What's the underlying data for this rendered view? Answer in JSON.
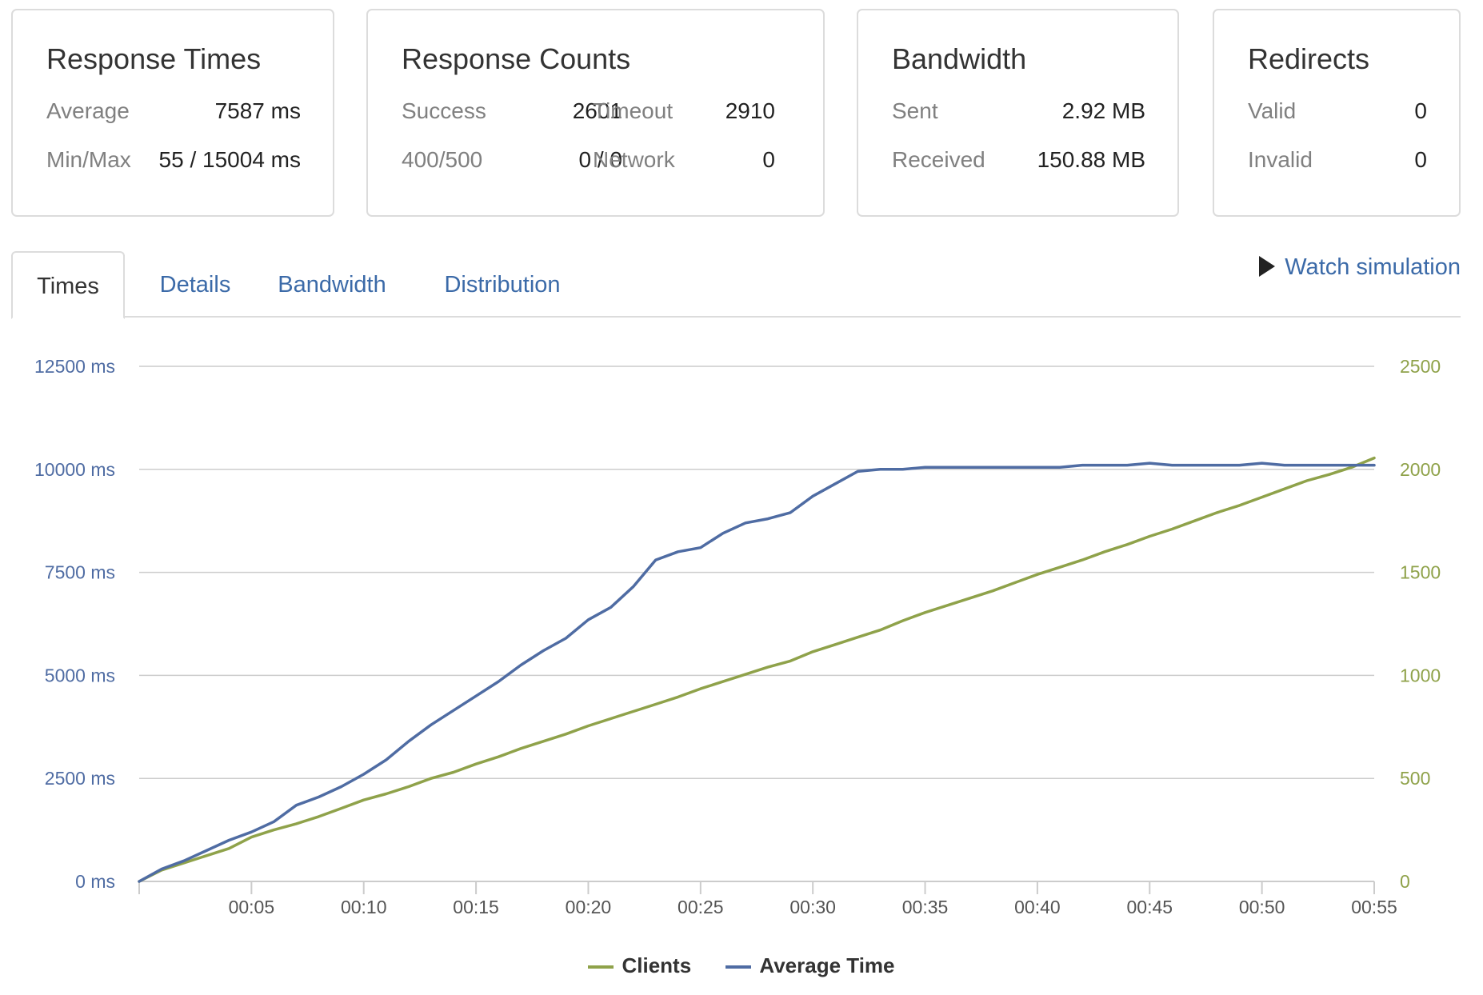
{
  "cards": {
    "response_times": {
      "title": "Response Times",
      "avg_label": "Average",
      "avg_value": "7587 ms",
      "minmax_label": "Min/Max",
      "minmax_value": "55 / 15004 ms"
    },
    "response_counts": {
      "title": "Response Counts",
      "success_label": "Success",
      "success_value": "2601",
      "timeout_label": "Timeout",
      "timeout_value": "2910",
      "err_label": "400/500",
      "err_value": "0 / 0",
      "network_label": "Network",
      "network_value": "0"
    },
    "bandwidth": {
      "title": "Bandwidth",
      "sent_label": "Sent",
      "sent_value": "2.92 MB",
      "received_label": "Received",
      "received_value": "150.88 MB"
    },
    "redirects": {
      "title": "Redirects",
      "valid_label": "Valid",
      "valid_value": "0",
      "invalid_label": "Invalid",
      "invalid_value": "0"
    }
  },
  "tabs": [
    {
      "label": "Times",
      "active": true
    },
    {
      "label": "Details",
      "active": false
    },
    {
      "label": "Bandwidth",
      "active": false
    },
    {
      "label": "Distribution",
      "active": false
    }
  ],
  "watch_label": "Watch simulation",
  "colors": {
    "clients": "#8fa24a",
    "avg_time": "#4f6ca3",
    "link": "#3b6aa8",
    "grid": "#cccccc"
  },
  "chart_data": {
    "type": "line",
    "x_ticks": [
      "00:05",
      "00:10",
      "00:15",
      "00:20",
      "00:25",
      "00:30",
      "00:35",
      "00:40",
      "00:45",
      "00:50",
      "00:55"
    ],
    "x_range": [
      0,
      55
    ],
    "y_left": {
      "ticks": [
        "0 ms",
        "2500 ms",
        "5000 ms",
        "7500 ms",
        "10000 ms",
        "12500 ms"
      ],
      "range": [
        0,
        12500
      ],
      "step": 2500
    },
    "y_right": {
      "ticks": [
        "0",
        "500",
        "1000",
        "1500",
        "2000",
        "2500"
      ],
      "range": [
        0,
        2500
      ],
      "step": 500
    },
    "series": [
      {
        "name": "Clients",
        "axis": "right",
        "x": [
          0,
          1,
          2,
          3,
          4,
          5,
          6,
          7,
          8,
          9,
          10,
          11,
          12,
          13,
          14,
          15,
          16,
          17,
          18,
          19,
          20,
          21,
          22,
          23,
          24,
          25,
          26,
          27,
          28,
          29,
          30,
          31,
          32,
          33,
          34,
          35,
          36,
          37,
          38,
          39,
          40,
          41,
          42,
          43,
          44,
          45,
          46,
          47,
          48,
          49,
          50,
          51,
          52,
          53,
          54,
          55
        ],
        "values": [
          0,
          55,
          90,
          125,
          160,
          215,
          250,
          280,
          315,
          355,
          395,
          425,
          460,
          500,
          530,
          570,
          605,
          645,
          680,
          715,
          755,
          790,
          825,
          860,
          895,
          935,
          970,
          1005,
          1040,
          1070,
          1115,
          1150,
          1185,
          1220,
          1265,
          1305,
          1340,
          1375,
          1410,
          1450,
          1490,
          1525,
          1560,
          1600,
          1635,
          1675,
          1710,
          1750,
          1790,
          1825,
          1865,
          1905,
          1945,
          1975,
          2010,
          2055
        ]
      },
      {
        "name": "Average Time",
        "axis": "left",
        "x": [
          0,
          1,
          2,
          3,
          4,
          5,
          6,
          7,
          8,
          9,
          10,
          11,
          12,
          13,
          14,
          15,
          16,
          17,
          18,
          19,
          20,
          21,
          22,
          23,
          24,
          25,
          26,
          27,
          28,
          29,
          30,
          31,
          32,
          33,
          34,
          35,
          36,
          37,
          38,
          39,
          40,
          41,
          42,
          43,
          44,
          45,
          46,
          47,
          48,
          49,
          50,
          51,
          52,
          53,
          54,
          55
        ],
        "values": [
          0,
          300,
          500,
          750,
          1000,
          1200,
          1450,
          1850,
          2050,
          2300,
          2600,
          2950,
          3400,
          3800,
          4150,
          4500,
          4850,
          5250,
          5600,
          5900,
          6350,
          6650,
          7150,
          7800,
          8000,
          8100,
          8450,
          8700,
          8800,
          8950,
          9350,
          9650,
          9950,
          10000,
          10000,
          10050,
          10050,
          10050,
          10050,
          10050,
          10050,
          10050,
          10100,
          10100,
          10100,
          10150,
          10100,
          10100,
          10100,
          10100,
          10150,
          10100,
          10100,
          10100,
          10100,
          10100
        ]
      }
    ],
    "legend": [
      "Clients",
      "Average Time"
    ],
    "legend_position": "bottom-center"
  }
}
